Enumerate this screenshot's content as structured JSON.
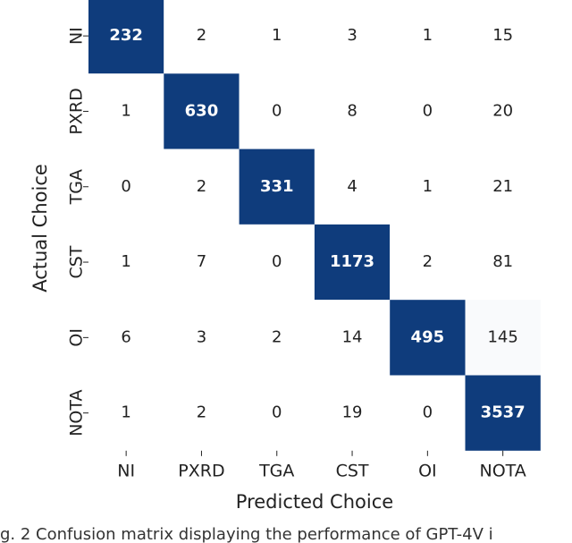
{
  "chart_data": {
    "type": "heatmap",
    "x_label": "Predicted Choice",
    "y_label": "Actual Choice",
    "categories": [
      "NI",
      "PXRD",
      "TGA",
      "CST",
      "OI",
      "NOTA"
    ],
    "values": [
      [
        232,
        2,
        1,
        3,
        1,
        15
      ],
      [
        1,
        630,
        0,
        8,
        0,
        20
      ],
      [
        0,
        2,
        331,
        4,
        1,
        21
      ],
      [
        1,
        7,
        0,
        1173,
        2,
        81
      ],
      [
        6,
        3,
        2,
        14,
        495,
        145
      ],
      [
        1,
        2,
        0,
        19,
        0,
        3537
      ]
    ],
    "colors": [
      "#ffffff",
      "#0f3c7c"
    ],
    "caption": "g. 2  Confusion matrix displaying the performance of GPT-4V i"
  }
}
